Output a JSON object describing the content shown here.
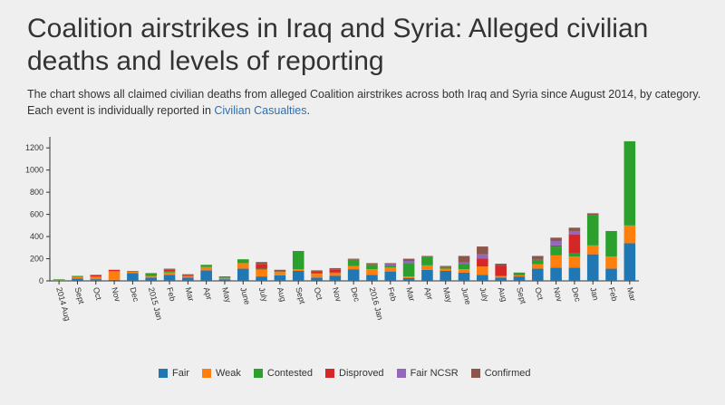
{
  "page": {
    "title": "Coalition airstrikes in Iraq and Syria: Alleged civilian deaths and levels of reporting",
    "description_prefix": "The chart shows all claimed civilian deaths from alleged Coalition airstrikes across both Iraq and Syria since August 2014, by category. Each event is individually reported in ",
    "link_text": "Civilian Casualties",
    "description_suffix": "."
  },
  "chart_data": {
    "type": "bar",
    "stacked": true,
    "ylim": [
      0,
      1300
    ],
    "yticks": [
      0,
      200,
      400,
      600,
      800,
      1000,
      1200
    ],
    "grid": false,
    "legend_position": "bottom",
    "categories": [
      "2014 Aug",
      "Sept",
      "Oct",
      "Nov",
      "Dec",
      "2015 Jan",
      "Feb",
      "Mar",
      "Apr",
      "May",
      "June",
      "July",
      "Aug",
      "Sept",
      "Oct",
      "Nov",
      "Dec",
      "2016 Jan",
      "Feb",
      "Mar",
      "Apr",
      "May",
      "June",
      "July",
      "Aug",
      "Sept",
      "Oct",
      "Nov",
      "Dec",
      "Jan",
      "Feb",
      "Mar"
    ],
    "series": [
      {
        "name": "Fair",
        "color": "#1f77b4",
        "values": [
          5,
          20,
          15,
          10,
          70,
          30,
          55,
          30,
          95,
          15,
          110,
          40,
          50,
          90,
          30,
          45,
          105,
          55,
          85,
          25,
          100,
          90,
          75,
          55,
          30,
          40,
          110,
          120,
          120,
          240,
          110,
          340
        ]
      },
      {
        "name": "Weak",
        "color": "#ff7f0e",
        "values": [
          5,
          15,
          20,
          75,
          15,
          15,
          20,
          15,
          30,
          10,
          50,
          60,
          30,
          15,
          35,
          25,
          30,
          50,
          35,
          15,
          40,
          20,
          30,
          75,
          15,
          10,
          40,
          110,
          100,
          80,
          110,
          160
        ]
      },
      {
        "name": "Contested",
        "color": "#2ca02c",
        "values": [
          5,
          10,
          5,
          5,
          0,
          25,
          15,
          0,
          20,
          5,
          35,
          10,
          10,
          160,
          5,
          5,
          55,
          40,
          15,
          120,
          80,
          15,
          50,
          0,
          0,
          25,
          40,
          80,
          30,
          270,
          230,
          760
        ]
      },
      {
        "name": "Disproved",
        "color": "#d62728",
        "values": [
          0,
          0,
          10,
          10,
          0,
          0,
          10,
          10,
          0,
          0,
          0,
          40,
          0,
          0,
          15,
          25,
          0,
          5,
          0,
          0,
          0,
          0,
          0,
          70,
          90,
          0,
          0,
          10,
          170,
          0,
          0,
          0
        ]
      },
      {
        "name": "Fair NCSR",
        "color": "#9467bd",
        "values": [
          0,
          0,
          0,
          0,
          0,
          0,
          0,
          0,
          0,
          0,
          0,
          0,
          0,
          0,
          0,
          0,
          0,
          0,
          15,
          20,
          0,
          0,
          10,
          40,
          0,
          0,
          0,
          40,
          30,
          0,
          0,
          0
        ]
      },
      {
        "name": "Confirmed",
        "color": "#8c564b",
        "values": [
          0,
          0,
          5,
          0,
          5,
          0,
          10,
          5,
          0,
          10,
          0,
          20,
          10,
          5,
          10,
          15,
          10,
          10,
          10,
          20,
          5,
          10,
          60,
          70,
          20,
          0,
          35,
          30,
          30,
          20,
          0,
          0
        ]
      }
    ]
  }
}
